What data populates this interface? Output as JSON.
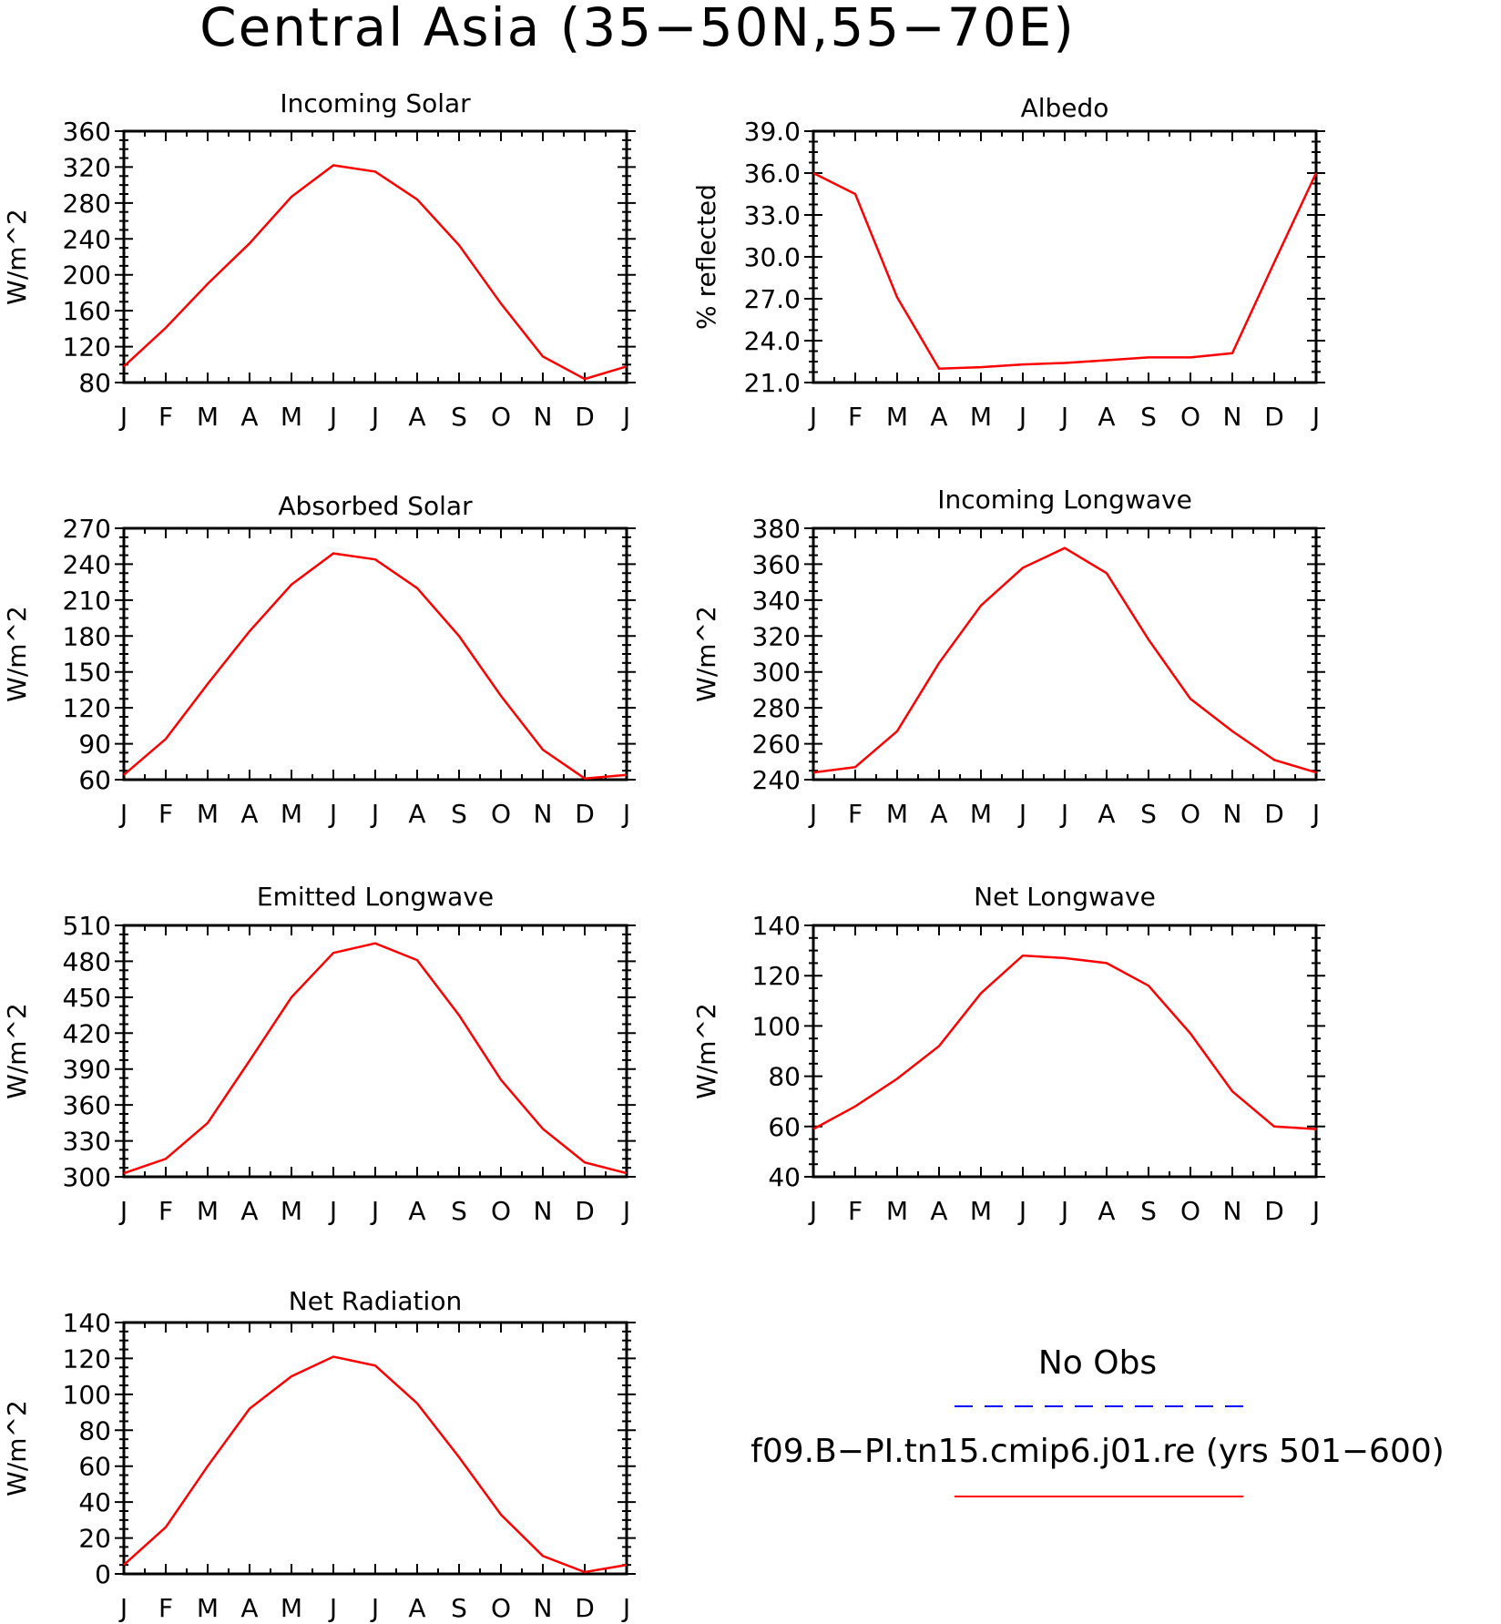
{
  "title": "Central Asia (35−50N,55−70E)",
  "chart_data": [
    {
      "type": "line",
      "title": "Incoming Solar",
      "ylabel": "W/m^2",
      "ylim": [
        80,
        360
      ],
      "yticks": [
        "80",
        "120",
        "160",
        "200",
        "240",
        "280",
        "320",
        "360"
      ],
      "x": [
        "J",
        "F",
        "M",
        "A",
        "M",
        "J",
        "J",
        "A",
        "S",
        "O",
        "N",
        "D",
        "J"
      ],
      "series": [
        {
          "name": "f09.B−PI.tn15.cmip6.j01.re (yrs 501−600)",
          "color": "#ff0000",
          "values": [
            98,
            141,
            190,
            235,
            287,
            322,
            315,
            284,
            233,
            168,
            109,
            84,
            98
          ]
        }
      ]
    },
    {
      "type": "line",
      "title": "Albedo",
      "ylabel": "% reflected",
      "ylim": [
        21,
        39
      ],
      "yticks": [
        "21.0",
        "24.0",
        "27.0",
        "30.0",
        "33.0",
        "36.0",
        "39.0"
      ],
      "x": [
        "J",
        "F",
        "M",
        "A",
        "M",
        "J",
        "J",
        "A",
        "S",
        "O",
        "N",
        "D",
        "J"
      ],
      "series": [
        {
          "name": "f09.B−PI.tn15.cmip6.j01.re (yrs 501−600)",
          "color": "#ff0000",
          "values": [
            36.0,
            34.5,
            27.1,
            22.0,
            22.1,
            22.3,
            22.4,
            22.6,
            22.8,
            22.8,
            23.1,
            29.6,
            36.0
          ]
        }
      ]
    },
    {
      "type": "line",
      "title": "Absorbed Solar",
      "ylabel": "W/m^2",
      "ylim": [
        60,
        270
      ],
      "yticks": [
        "60",
        "90",
        "120",
        "150",
        "180",
        "210",
        "240",
        "270"
      ],
      "x": [
        "J",
        "F",
        "M",
        "A",
        "M",
        "J",
        "J",
        "A",
        "S",
        "O",
        "N",
        "D",
        "J"
      ],
      "series": [
        {
          "name": "f09.B−PI.tn15.cmip6.j01.re (yrs 501−600)",
          "color": "#ff0000",
          "values": [
            64,
            94,
            140,
            184,
            223,
            249,
            244,
            220,
            180,
            130,
            85,
            61,
            64
          ]
        }
      ]
    },
    {
      "type": "line",
      "title": "Incoming Longwave",
      "ylabel": "W/m^2",
      "ylim": [
        240,
        380
      ],
      "yticks": [
        "240",
        "260",
        "280",
        "300",
        "320",
        "340",
        "360",
        "380"
      ],
      "x": [
        "J",
        "F",
        "M",
        "A",
        "M",
        "J",
        "J",
        "A",
        "S",
        "O",
        "N",
        "D",
        "J"
      ],
      "series": [
        {
          "name": "f09.B−PI.tn15.cmip6.j01.re (yrs 501−600)",
          "color": "#ff0000",
          "values": [
            244,
            247,
            267,
            305,
            337,
            358,
            369,
            355,
            318,
            285,
            267,
            251,
            244
          ]
        }
      ]
    },
    {
      "type": "line",
      "title": "Emitted Longwave",
      "ylabel": "W/m^2",
      "ylim": [
        300,
        510
      ],
      "yticks": [
        "300",
        "330",
        "360",
        "390",
        "420",
        "450",
        "480",
        "510"
      ],
      "x": [
        "J",
        "F",
        "M",
        "A",
        "M",
        "J",
        "J",
        "A",
        "S",
        "O",
        "N",
        "D",
        "J"
      ],
      "series": [
        {
          "name": "f09.B−PI.tn15.cmip6.j01.re (yrs 501−600)",
          "color": "#ff0000",
          "values": [
            303,
            315,
            345,
            397,
            450,
            487,
            495,
            481,
            435,
            381,
            340,
            312,
            303
          ]
        }
      ]
    },
    {
      "type": "line",
      "title": "Net Longwave",
      "ylabel": "W/m^2",
      "ylim": [
        40,
        140
      ],
      "yticks": [
        "40",
        "60",
        "80",
        "100",
        "120",
        "140"
      ],
      "x": [
        "J",
        "F",
        "M",
        "A",
        "M",
        "J",
        "J",
        "A",
        "S",
        "O",
        "N",
        "D",
        "J"
      ],
      "series": [
        {
          "name": "f09.B−PI.tn15.cmip6.j01.re (yrs 501−600)",
          "color": "#ff0000",
          "values": [
            59,
            68,
            79,
            92,
            113,
            128,
            127,
            125,
            116,
            97,
            74,
            60,
            59
          ]
        }
      ]
    },
    {
      "type": "line",
      "title": "Net Radiation",
      "ylabel": "W/m^2",
      "ylim": [
        0,
        140
      ],
      "yticks": [
        "0",
        "20",
        "40",
        "60",
        "80",
        "100",
        "120",
        "140"
      ],
      "x": [
        "J",
        "F",
        "M",
        "A",
        "M",
        "J",
        "J",
        "A",
        "S",
        "O",
        "N",
        "D",
        "J"
      ],
      "series": [
        {
          "name": "f09.B−PI.tn15.cmip6.j01.re (yrs 501−600)",
          "color": "#ff0000",
          "values": [
            5,
            26,
            60,
            92,
            110,
            121,
            116,
            95,
            65,
            33,
            10,
            1,
            5
          ]
        }
      ]
    }
  ],
  "legend": [
    {
      "label": "No Obs",
      "color": "#0000ff",
      "style": "dashed"
    },
    {
      "label": "f09.B−PI.tn15.cmip6.j01.re (yrs 501−600)",
      "color": "#ff0000",
      "style": "solid"
    }
  ]
}
